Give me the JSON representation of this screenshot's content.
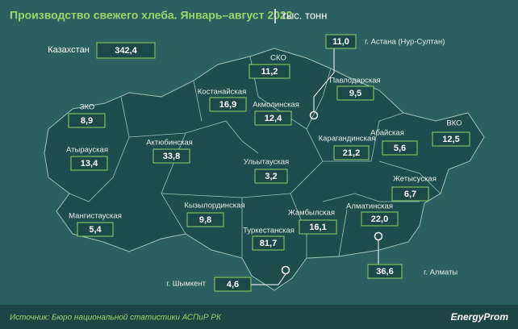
{
  "header": {
    "title": "Производство свежего хлеба. Январь–август 2022",
    "unit": "тыс. тонн"
  },
  "total": {
    "label": "Казахстан",
    "value": "342,4"
  },
  "regions": [
    {
      "name": "СКО",
      "value": "11,2"
    },
    {
      "name": "г. Астана (Нур-Султан)",
      "value": "11,0"
    },
    {
      "name": "Павлодарская",
      "value": "9,5"
    },
    {
      "name": "Костанайская",
      "value": "16,9"
    },
    {
      "name": "Акмолинская",
      "value": "12,4"
    },
    {
      "name": "ЗКО",
      "value": "8,9"
    },
    {
      "name": "Абайская",
      "value": "5,6"
    },
    {
      "name": "ВКО",
      "value": "12,5"
    },
    {
      "name": "Карагандинская",
      "value": "21,2"
    },
    {
      "name": "Атырауская",
      "value": "13,4"
    },
    {
      "name": "Актюбинская",
      "value": "33,8"
    },
    {
      "name": "Ульытауская",
      "value": "3,2"
    },
    {
      "name": "Жетысуская",
      "value": "6,7"
    },
    {
      "name": "Кызылординская",
      "value": "9,8"
    },
    {
      "name": "Жамбылская",
      "value": "16,1"
    },
    {
      "name": "Алматинская",
      "value": "22,0"
    },
    {
      "name": "Мангистауская",
      "value": "5,4"
    },
    {
      "name": "Туркестанская",
      "value": "81,7"
    },
    {
      "name": "г. Алматы",
      "value": "36,6"
    },
    {
      "name": "г. Шымкент",
      "value": "4,6"
    }
  ],
  "footer": {
    "source": "Источник: Бюро национальной статистики АСПиР РК",
    "brand": "EnergyProm"
  }
}
